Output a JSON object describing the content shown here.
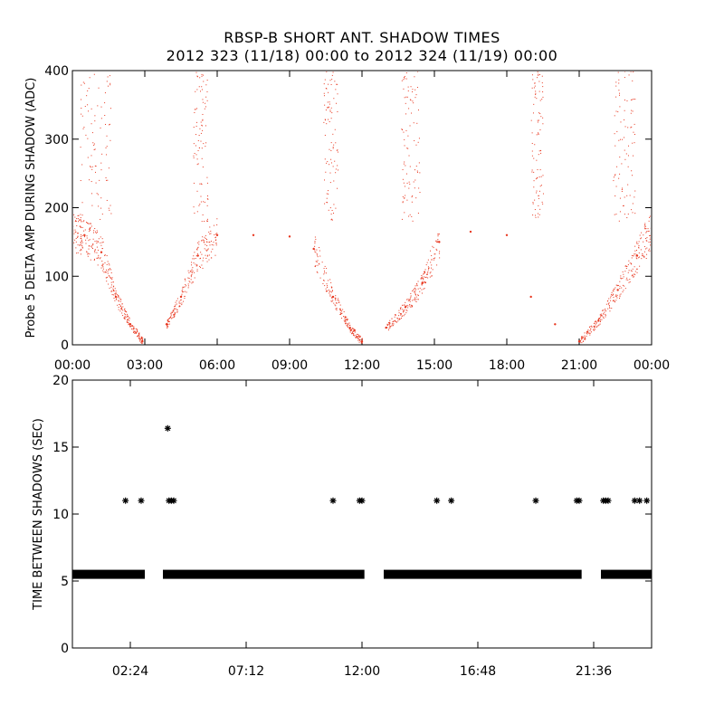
{
  "title": "RBSP-B SHORT ANT. SHADOW TIMES",
  "subtitle": "2012 323 (11/18) 00:00 to 2012 324 (11/19) 00:00",
  "chart_data": [
    {
      "type": "scatter",
      "ylabel": "Probe 5 DELTA AMP DURING SHADOW (ADC)",
      "xlabel": "",
      "x_unit": "hours",
      "xlim": [
        0,
        24
      ],
      "ylim": [
        0,
        400
      ],
      "xticks": [
        0,
        3,
        6,
        9,
        12,
        15,
        18,
        21,
        24
      ],
      "xtick_labels": [
        "00:00",
        "03:00",
        "06:00",
        "09:00",
        "12:00",
        "15:00",
        "18:00",
        "21:00",
        "00:00"
      ],
      "yticks": [
        0,
        100,
        200,
        300,
        400
      ],
      "color": "#e8371f",
      "marker": "dot",
      "description_points": [
        {
          "x": 0.0,
          "y": 165
        },
        {
          "x": 0.5,
          "y": 160
        },
        {
          "x": 1.2,
          "y": 135
        },
        {
          "x": 1.8,
          "y": 70
        },
        {
          "x": 2.4,
          "y": 30
        },
        {
          "x": 2.9,
          "y": 5
        },
        {
          "x": 3.9,
          "y": 30
        },
        {
          "x": 4.5,
          "y": 70
        },
        {
          "x": 5.2,
          "y": 130
        },
        {
          "x": 6.0,
          "y": 160
        },
        {
          "x": 7.5,
          "y": 160
        },
        {
          "x": 9.0,
          "y": 158
        },
        {
          "x": 10.0,
          "y": 140
        },
        {
          "x": 10.8,
          "y": 70
        },
        {
          "x": 11.5,
          "y": 25
        },
        {
          "x": 12.0,
          "y": 5
        },
        {
          "x": 13.0,
          "y": 25
        },
        {
          "x": 13.8,
          "y": 55
        },
        {
          "x": 14.5,
          "y": 90
        },
        {
          "x": 15.2,
          "y": 150
        },
        {
          "x": 16.5,
          "y": 165
        },
        {
          "x": 18.0,
          "y": 160
        },
        {
          "x": 19.0,
          "y": 70
        },
        {
          "x": 20.0,
          "y": 30
        },
        {
          "x": 21.0,
          "y": 5
        },
        {
          "x": 21.8,
          "y": 35
        },
        {
          "x": 22.6,
          "y": 80
        },
        {
          "x": 23.4,
          "y": 130
        },
        {
          "x": 24.0,
          "y": 170
        }
      ]
    },
    {
      "type": "scatter",
      "ylabel": "TIME BETWEEN SHADOWS (SEC)",
      "xlabel": "",
      "x_unit": "hours",
      "xlim": [
        0,
        24
      ],
      "ylim": [
        0,
        20
      ],
      "xticks": [
        2.4,
        7.2,
        12.0,
        16.8,
        21.6
      ],
      "xtick_labels": [
        "02:24",
        "07:12",
        "12:00",
        "16:48",
        "21:36"
      ],
      "yticks": [
        0,
        5,
        10,
        15,
        20
      ],
      "color": "#000000",
      "marker": "asterisk",
      "baseline_segments": [
        {
          "y": 5.5,
          "x_start": 0.0,
          "x_end": 3.0
        },
        {
          "y": 5.5,
          "x_start": 3.75,
          "x_end": 12.1
        },
        {
          "y": 5.5,
          "x_start": 12.9,
          "x_end": 21.1
        },
        {
          "y": 5.5,
          "x_start": 21.9,
          "x_end": 24.0
        }
      ],
      "points": [
        {
          "x": 2.2,
          "y": 11
        },
        {
          "x": 2.85,
          "y": 11
        },
        {
          "x": 3.95,
          "y": 16.4
        },
        {
          "x": 4.0,
          "y": 11
        },
        {
          "x": 4.1,
          "y": 11
        },
        {
          "x": 4.2,
          "y": 11
        },
        {
          "x": 10.8,
          "y": 11
        },
        {
          "x": 11.9,
          "y": 11
        },
        {
          "x": 12.0,
          "y": 11
        },
        {
          "x": 15.1,
          "y": 11
        },
        {
          "x": 15.7,
          "y": 11
        },
        {
          "x": 19.2,
          "y": 11
        },
        {
          "x": 20.9,
          "y": 11
        },
        {
          "x": 21.0,
          "y": 11
        },
        {
          "x": 22.0,
          "y": 11
        },
        {
          "x": 22.1,
          "y": 11
        },
        {
          "x": 22.2,
          "y": 11
        },
        {
          "x": 23.3,
          "y": 11
        },
        {
          "x": 23.5,
          "y": 11
        },
        {
          "x": 23.8,
          "y": 11
        }
      ]
    }
  ]
}
